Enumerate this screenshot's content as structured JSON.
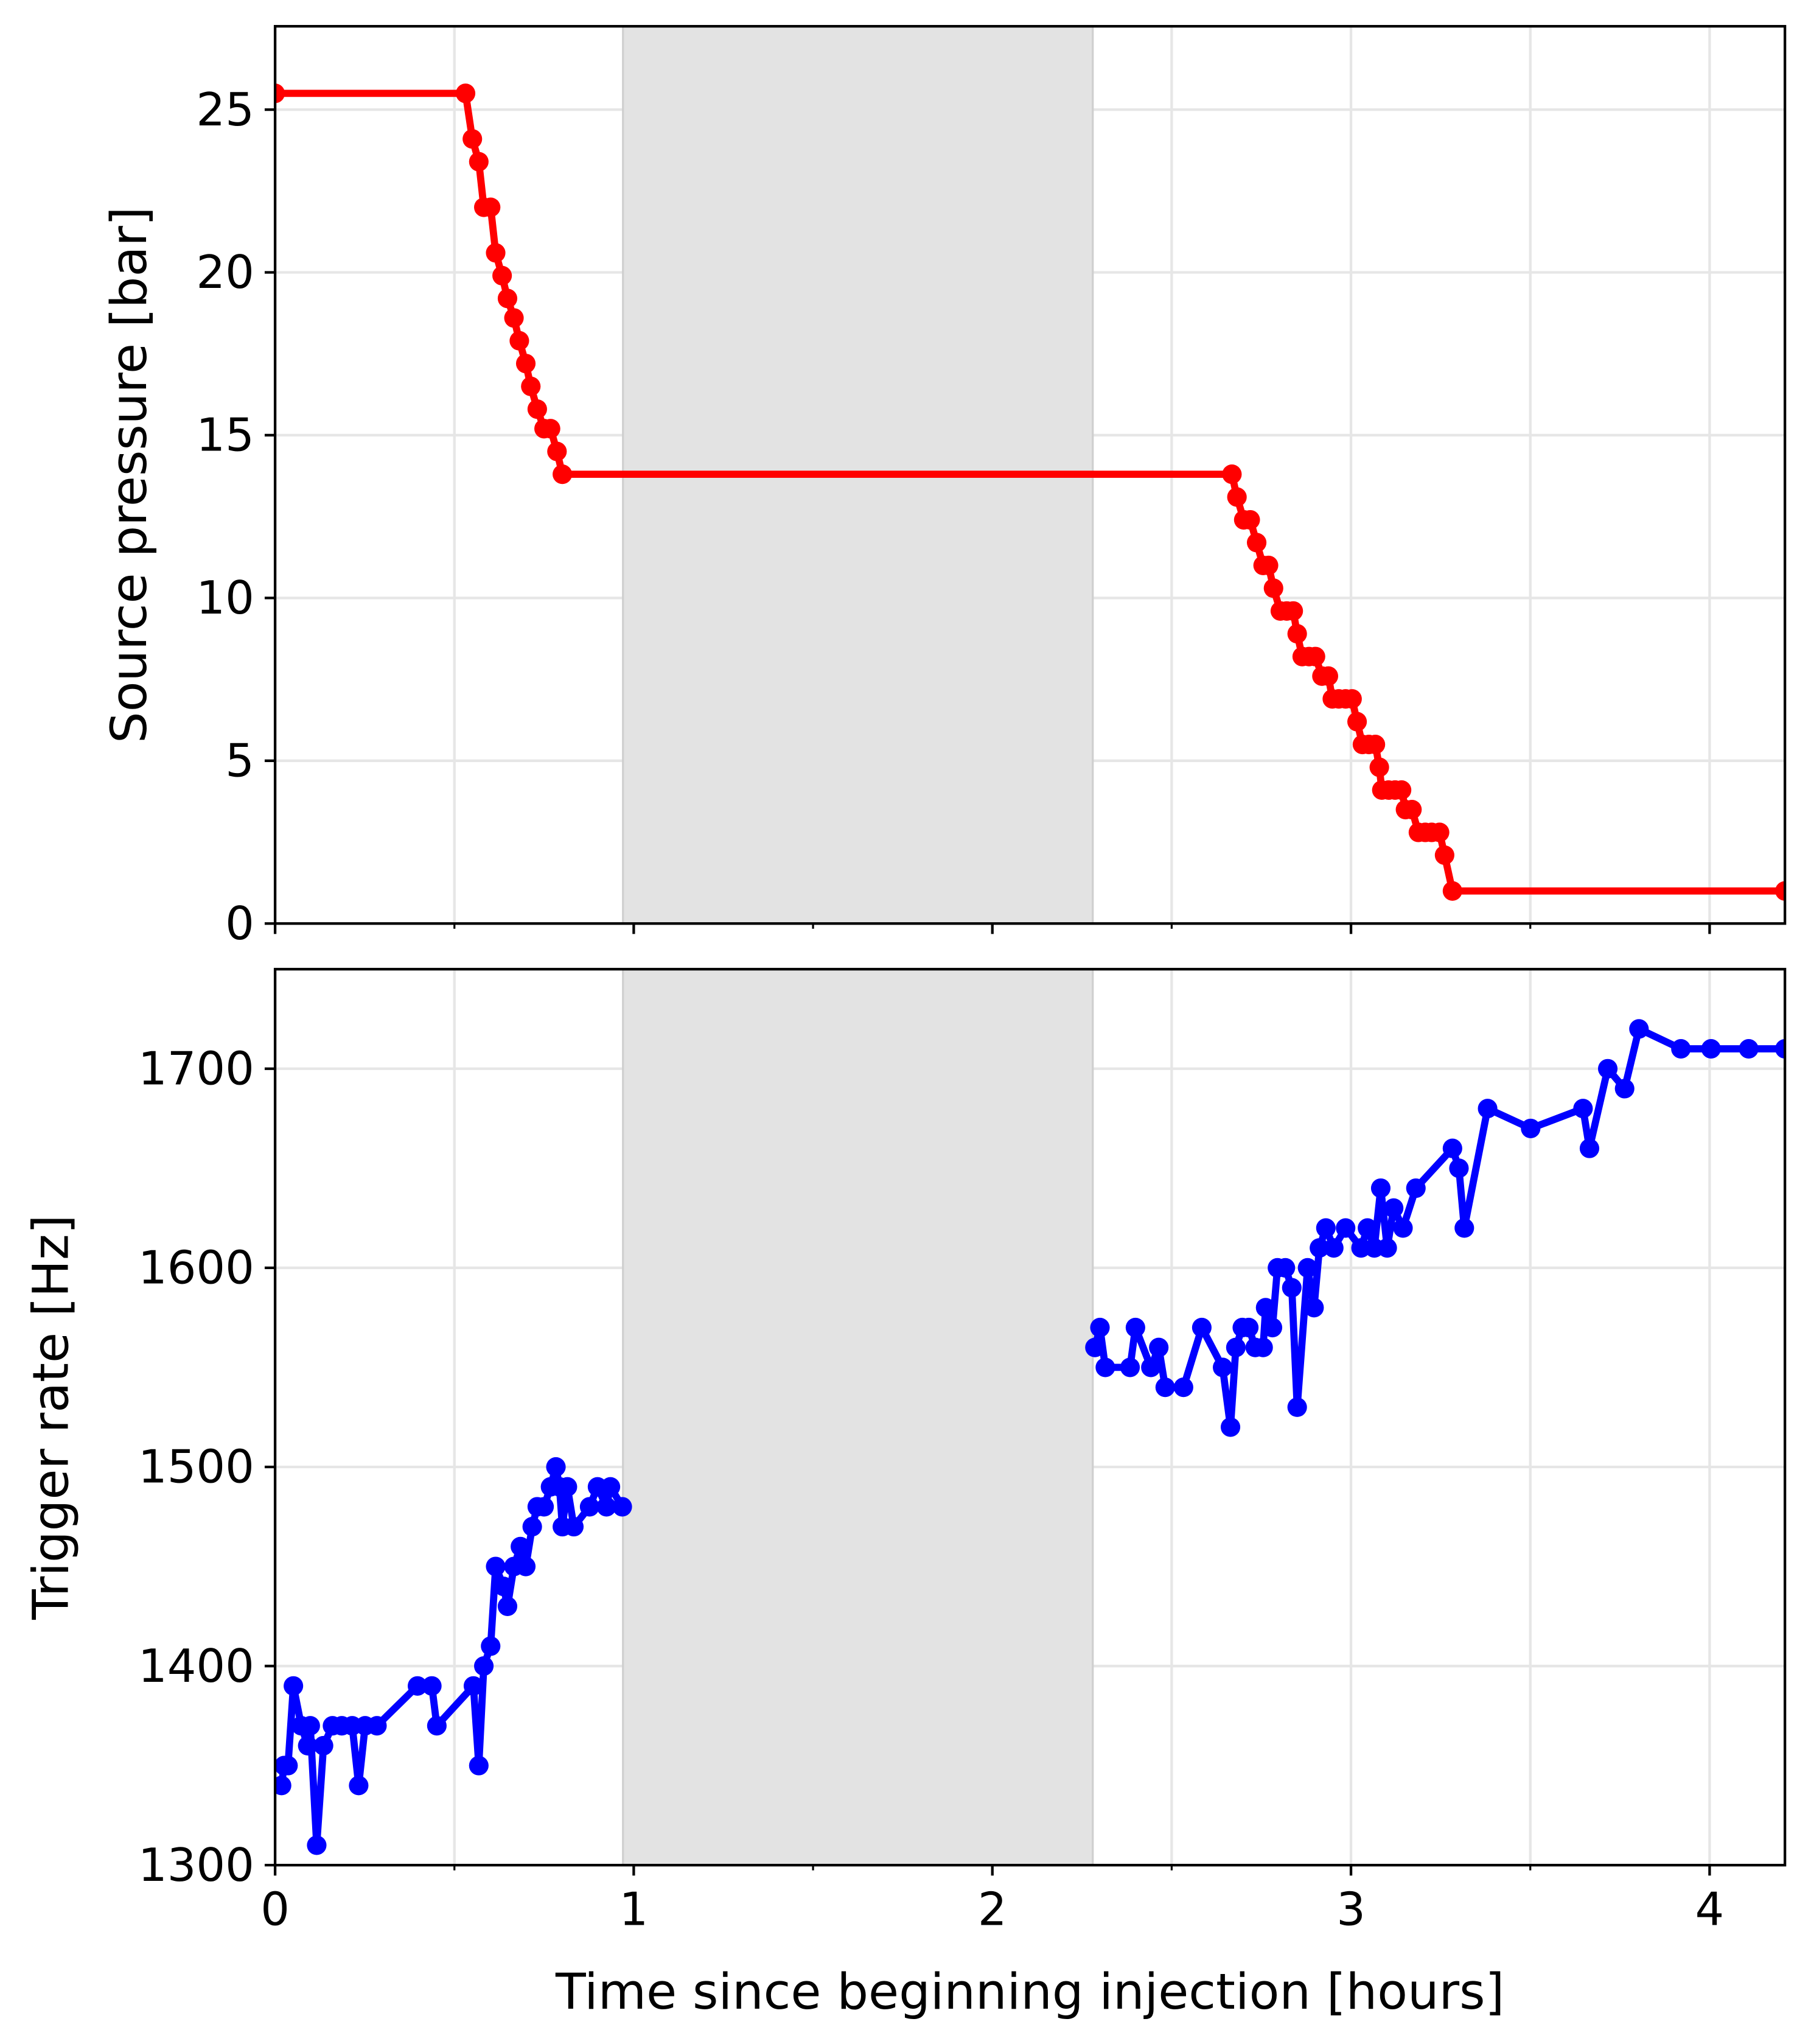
{
  "chart_data": [
    {
      "type": "line",
      "ylabel": "Source pressure [bar]",
      "xlim": [
        0,
        4.21
      ],
      "ylim": [
        0,
        27.56
      ],
      "xticks": [
        0,
        1,
        2,
        3,
        4
      ],
      "xminor": [
        0.5,
        1.5,
        2.5,
        3.5
      ],
      "yticks": [
        0,
        5,
        10,
        15,
        20,
        25
      ],
      "grid": true,
      "shaded_span": [
        0.97,
        2.28
      ],
      "shade_color": "#e3e3e3",
      "series": [
        {
          "color": "#ff0000",
          "x": [
            0,
            0.531,
            0.55,
            0.568,
            0.582,
            0.601,
            0.615,
            0.633,
            0.648,
            0.666,
            0.681,
            0.699,
            0.713,
            0.731,
            0.75,
            0.768,
            0.786,
            0.801,
            2.668,
            2.682,
            2.701,
            2.719,
            2.737,
            2.755,
            2.77,
            2.784,
            2.803,
            2.821,
            2.839,
            2.85,
            2.864,
            2.883,
            2.901,
            2.919,
            2.937,
            2.948,
            2.966,
            2.985,
            3.003,
            3.017,
            3.032,
            3.05,
            3.068,
            3.079,
            3.086,
            3.105,
            3.123,
            3.141,
            3.152,
            3.17,
            3.188,
            3.207,
            3.225,
            3.247,
            3.261,
            3.283,
            4.21
          ],
          "values": [
            25.5,
            25.5,
            24.1,
            23.4,
            22,
            22,
            20.6,
            19.9,
            19.2,
            18.6,
            17.9,
            17.2,
            16.5,
            15.8,
            15.2,
            15.2,
            14.5,
            13.8,
            13.8,
            13.1,
            12.4,
            12.4,
            11.7,
            11,
            11,
            10.3,
            9.6,
            9.6,
            9.6,
            8.9,
            8.2,
            8.2,
            8.2,
            7.6,
            7.6,
            6.9,
            6.9,
            6.9,
            6.9,
            6.2,
            5.5,
            5.5,
            5.5,
            4.8,
            4.1,
            4.1,
            4.1,
            4.1,
            3.5,
            3.5,
            2.8,
            2.8,
            2.8,
            2.8,
            2.1,
            1.0,
            1.0
          ]
        }
      ]
    },
    {
      "type": "line",
      "ylabel": "Trigger rate [Hz]",
      "xlabel": "Time since beginning injection [hours]",
      "xlim": [
        0,
        4.21
      ],
      "ylim": [
        1300,
        1750
      ],
      "xticks": [
        0,
        1,
        2,
        3,
        4
      ],
      "xminor": [
        0.5,
        1.5,
        2.5,
        3.5
      ],
      "yticks": [
        1300,
        1400,
        1500,
        1600,
        1700
      ],
      "grid": true,
      "shaded_span": [
        0.97,
        2.28
      ],
      "shade_color": "#e3e3e3",
      "series": [
        {
          "color": "#0000ff",
          "x": [
            0.018,
            0.025,
            0.036,
            0.051,
            0.073,
            0.091,
            0.098,
            0.116,
            0.135,
            0.16,
            0.186,
            0.215,
            0.233,
            0.251,
            0.284,
            0.397,
            0.437,
            0.451,
            0.553,
            0.568,
            0.582,
            0.601,
            0.615,
            0.637,
            0.648,
            0.666,
            0.684,
            0.699,
            0.717,
            0.731,
            0.75,
            0.768,
            0.783,
            0.793,
            0.801,
            0.815,
            0.833,
            0.877,
            0.899,
            0.924,
            0.935,
            0.968,
            null,
            2.286,
            2.3,
            2.315,
            2.384,
            2.399,
            2.442,
            2.464,
            2.482,
            2.533,
            2.584,
            2.642,
            2.664,
            2.679,
            2.697,
            2.715,
            2.733,
            2.755,
            2.762,
            2.781,
            2.795,
            2.817,
            2.835,
            2.85,
            2.879,
            2.897,
            2.912,
            2.93,
            2.952,
            2.985,
            3.028,
            3.046,
            3.065,
            3.083,
            3.101,
            3.119,
            3.145,
            3.181,
            3.283,
            3.301,
            3.316,
            3.381,
            3.501,
            3.647,
            3.665,
            3.716,
            3.763,
            3.803,
            3.92,
            4.004,
            4.109,
            4.21
          ],
          "values": [
            1340,
            1350,
            1350,
            1390,
            1370,
            1360,
            1370,
            1310,
            1360,
            1370,
            1370,
            1370,
            1340,
            1370,
            1370,
            1390,
            1390,
            1370,
            1390,
            1350,
            1400,
            1410,
            1450,
            1440,
            1430,
            1450,
            1460,
            1450,
            1470,
            1480,
            1480,
            1490,
            1500,
            1490,
            1470,
            1490,
            1470,
            1480,
            1490,
            1480,
            1490,
            1480,
            null,
            1560,
            1570,
            1550,
            1550,
            1570,
            1550,
            1560,
            1540,
            1540,
            1570,
            1550,
            1520,
            1560,
            1570,
            1570,
            1560,
            1560,
            1580,
            1570,
            1600,
            1600,
            1590,
            1530,
            1600,
            1580,
            1610,
            1620,
            1610,
            1620,
            1610,
            1620,
            1610,
            1640,
            1610,
            1630,
            1620,
            1640,
            1660,
            1650,
            1620,
            1680,
            1670,
            1680,
            1660,
            1700,
            1690,
            1720,
            1710,
            1710,
            1710,
            1710
          ]
        }
      ]
    }
  ]
}
